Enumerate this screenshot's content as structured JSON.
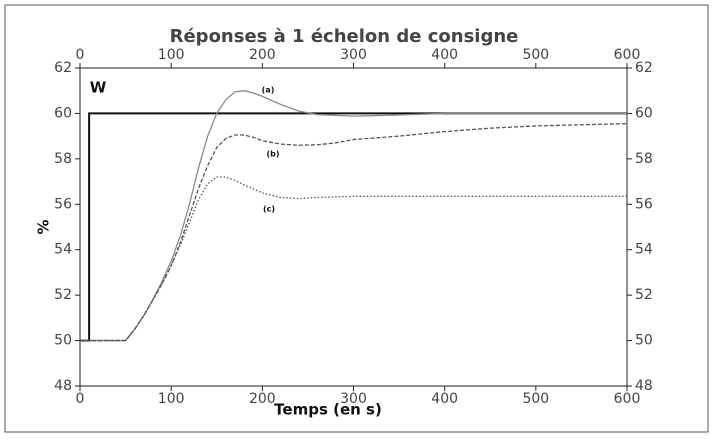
{
  "chart_data": {
    "type": "line",
    "title": "Réponses à 1 échelon de consigne",
    "xlabel": "Temps (en s)",
    "ylabel": "%",
    "xlim": [
      0,
      600
    ],
    "xticks": [
      0,
      100,
      200,
      300,
      400,
      500,
      600
    ],
    "ylim": [
      48,
      62
    ],
    "yticks": [
      48,
      50,
      52,
      54,
      56,
      58,
      60,
      62
    ],
    "series": [
      {
        "name": "W",
        "color": "#111111",
        "dash": "solid",
        "x": [
          0,
          10,
          10,
          600
        ],
        "values": [
          50,
          50,
          60,
          60
        ]
      },
      {
        "name": "(a)",
        "color": "#8a8a8a",
        "dash": "solid",
        "x": [
          0,
          50,
          60,
          70,
          80,
          90,
          100,
          110,
          120,
          130,
          140,
          150,
          160,
          170,
          180,
          190,
          200,
          220,
          240,
          260,
          300,
          340,
          400,
          600
        ],
        "values": [
          50,
          50,
          50.5,
          51.1,
          51.8,
          52.6,
          53.5,
          54.6,
          56.0,
          57.6,
          59.0,
          60.0,
          60.6,
          60.95,
          61.0,
          60.9,
          60.75,
          60.4,
          60.1,
          59.95,
          59.88,
          59.92,
          60,
          60
        ]
      },
      {
        "name": "(b)",
        "color": "#555555",
        "dash": "dashed",
        "x": [
          0,
          50,
          60,
          70,
          80,
          90,
          100,
          110,
          120,
          130,
          140,
          150,
          160,
          170,
          180,
          190,
          200,
          220,
          240,
          260,
          280,
          300,
          350,
          400,
          450,
          500,
          600
        ],
        "values": [
          50,
          50,
          50.5,
          51.1,
          51.8,
          52.5,
          53.3,
          54.3,
          55.5,
          56.7,
          57.7,
          58.5,
          58.9,
          59.05,
          59.05,
          58.95,
          58.8,
          58.65,
          58.6,
          58.62,
          58.7,
          58.85,
          59.0,
          59.2,
          59.35,
          59.45,
          59.55
        ]
      },
      {
        "name": "(c)",
        "color": "#555555",
        "dash": "dotted",
        "x": [
          0,
          50,
          60,
          70,
          80,
          90,
          100,
          110,
          120,
          130,
          140,
          150,
          160,
          170,
          180,
          200,
          220,
          240,
          260,
          300,
          350,
          400,
          600
        ],
        "values": [
          50,
          50,
          50.5,
          51.1,
          51.8,
          52.5,
          53.3,
          54.2,
          55.2,
          56.2,
          56.9,
          57.2,
          57.2,
          57.05,
          56.85,
          56.5,
          56.3,
          56.25,
          56.3,
          56.35,
          56.35,
          56.35,
          56.35
        ]
      }
    ]
  }
}
